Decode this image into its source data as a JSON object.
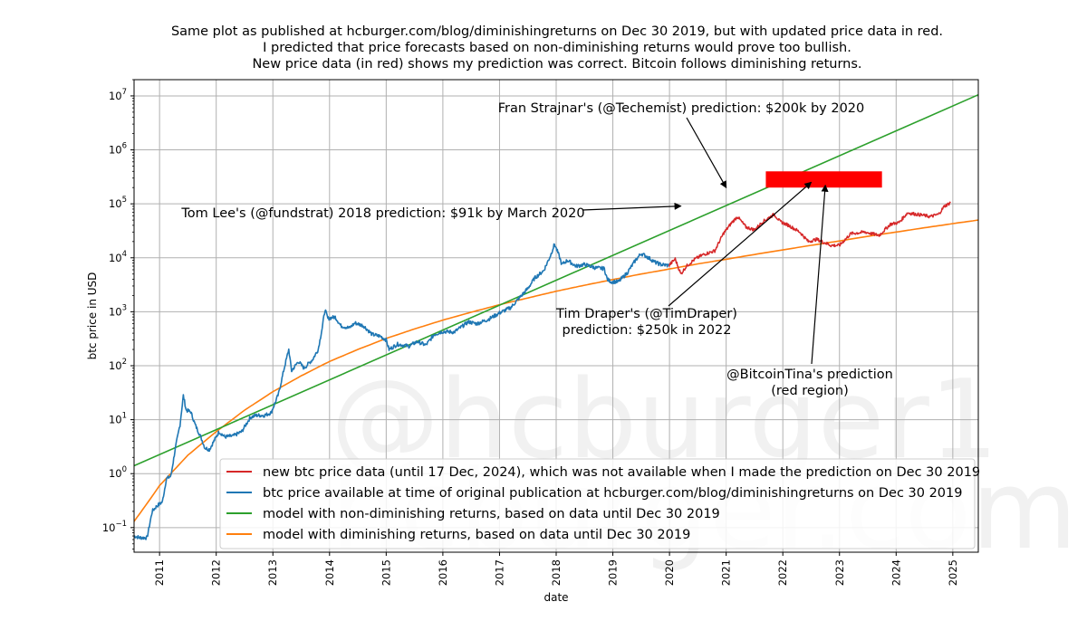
{
  "chart_data": {
    "type": "line",
    "title_lines": [
      "Same plot as published at hcburger.com/blog/diminishingreturns on Dec 30 2019, but with updated price data in red.",
      "I predicted that price forecasts based on non-diminishing returns would prove too bullish.",
      "New price data (in red) shows my prediction was correct. Bitcoin follows diminishing returns."
    ],
    "xlabel": "date",
    "ylabel": "btc price in USD",
    "x_scale": "linear (years)",
    "y_scale": "log",
    "xlim": [
      2010.55,
      2025.45
    ],
    "ylim": [
      0.035,
      20000000
    ],
    "x_ticks": [
      2011,
      2012,
      2013,
      2014,
      2015,
      2016,
      2017,
      2018,
      2019,
      2020,
      2021,
      2022,
      2023,
      2024,
      2025
    ],
    "y_ticks": [
      {
        "base": "10",
        "exp": "−1",
        "value": 0.1
      },
      {
        "base": "10",
        "exp": "0",
        "value": 1
      },
      {
        "base": "10",
        "exp": "1",
        "value": 10
      },
      {
        "base": "10",
        "exp": "2",
        "value": 100
      },
      {
        "base": "10",
        "exp": "3",
        "value": 1000
      },
      {
        "base": "10",
        "exp": "4",
        "value": 10000
      },
      {
        "base": "10",
        "exp": "5",
        "value": 100000
      },
      {
        "base": "10",
        "exp": "6",
        "value": 1000000
      },
      {
        "base": "10",
        "exp": "7",
        "value": 10000000
      }
    ],
    "grid": true,
    "watermark_lines": [
      "@hcburger1",
      "hcburger.com"
    ],
    "series": [
      {
        "name": "btc price available at time of original publication at hcburger.com/blog/diminishingreturns on Dec 30 2019",
        "color": "#1f77b4",
        "points": [
          [
            2010.55,
            0.07
          ],
          [
            2010.65,
            0.065
          ],
          [
            2010.78,
            0.065
          ],
          [
            2010.87,
            0.2
          ],
          [
            2010.95,
            0.25
          ],
          [
            2011.05,
            0.3
          ],
          [
            2011.12,
            0.8
          ],
          [
            2011.2,
            0.9
          ],
          [
            2011.28,
            3.0
          ],
          [
            2011.36,
            8
          ],
          [
            2011.42,
            28
          ],
          [
            2011.47,
            15
          ],
          [
            2011.55,
            14
          ],
          [
            2011.63,
            8
          ],
          [
            2011.72,
            5
          ],
          [
            2011.8,
            3
          ],
          [
            2011.88,
            2.8
          ],
          [
            2011.96,
            4
          ],
          [
            2012.05,
            6
          ],
          [
            2012.15,
            4.8
          ],
          [
            2012.3,
            5
          ],
          [
            2012.45,
            6
          ],
          [
            2012.6,
            11
          ],
          [
            2012.7,
            12
          ],
          [
            2012.85,
            12
          ],
          [
            2012.97,
            13.5
          ],
          [
            2013.1,
            30
          ],
          [
            2013.2,
            90
          ],
          [
            2013.28,
            200
          ],
          [
            2013.33,
            80
          ],
          [
            2013.45,
            120
          ],
          [
            2013.55,
            90
          ],
          [
            2013.7,
            130
          ],
          [
            2013.8,
            200
          ],
          [
            2013.87,
            500
          ],
          [
            2013.92,
            1100
          ],
          [
            2013.97,
            750
          ],
          [
            2014.1,
            800
          ],
          [
            2014.2,
            550
          ],
          [
            2014.35,
            500
          ],
          [
            2014.45,
            620
          ],
          [
            2014.6,
            550
          ],
          [
            2014.75,
            380
          ],
          [
            2014.9,
            350
          ],
          [
            2015.0,
            300
          ],
          [
            2015.05,
            200
          ],
          [
            2015.2,
            250
          ],
          [
            2015.4,
            230
          ],
          [
            2015.55,
            280
          ],
          [
            2015.7,
            240
          ],
          [
            2015.85,
            380
          ],
          [
            2016.0,
            430
          ],
          [
            2016.2,
            420
          ],
          [
            2016.45,
            650
          ],
          [
            2016.6,
            600
          ],
          [
            2016.8,
            720
          ],
          [
            2017.0,
            950
          ],
          [
            2017.2,
            1200
          ],
          [
            2017.35,
            1800
          ],
          [
            2017.5,
            2700
          ],
          [
            2017.62,
            4200
          ],
          [
            2017.78,
            5800
          ],
          [
            2017.9,
            11000
          ],
          [
            2017.97,
            18000
          ],
          [
            2018.05,
            11000
          ],
          [
            2018.1,
            7500
          ],
          [
            2018.2,
            9000
          ],
          [
            2018.35,
            7000
          ],
          [
            2018.5,
            7500
          ],
          [
            2018.7,
            6500
          ],
          [
            2018.85,
            6300
          ],
          [
            2018.9,
            4000
          ],
          [
            2018.97,
            3600
          ],
          [
            2019.1,
            3600
          ],
          [
            2019.25,
            5200
          ],
          [
            2019.4,
            9000
          ],
          [
            2019.5,
            12000
          ],
          [
            2019.6,
            10500
          ],
          [
            2019.75,
            8200
          ],
          [
            2019.85,
            7500
          ],
          [
            2019.99,
            7200
          ]
        ]
      },
      {
        "name": "new btc price data (until 17 Dec, 2024), which was not available when I made the prediction on Dec 30 2019",
        "color": "#d62728",
        "points": [
          [
            2019.99,
            7200
          ],
          [
            2020.1,
            9500
          ],
          [
            2020.2,
            5000
          ],
          [
            2020.3,
            7000
          ],
          [
            2020.45,
            9500
          ],
          [
            2020.6,
            11500
          ],
          [
            2020.8,
            13500
          ],
          [
            2020.95,
            28000
          ],
          [
            2021.1,
            45000
          ],
          [
            2021.2,
            58000
          ],
          [
            2021.35,
            37000
          ],
          [
            2021.5,
            33000
          ],
          [
            2021.65,
            47000
          ],
          [
            2021.85,
            64000
          ],
          [
            2021.95,
            47000
          ],
          [
            2022.1,
            40000
          ],
          [
            2022.3,
            30000
          ],
          [
            2022.45,
            20000
          ],
          [
            2022.6,
            22000
          ],
          [
            2022.85,
            17000
          ],
          [
            2023.0,
            17000
          ],
          [
            2023.2,
            28000
          ],
          [
            2023.45,
            30000
          ],
          [
            2023.7,
            26000
          ],
          [
            2023.9,
            42000
          ],
          [
            2024.05,
            45000
          ],
          [
            2024.2,
            68000
          ],
          [
            2024.45,
            62000
          ],
          [
            2024.6,
            58000
          ],
          [
            2024.75,
            64000
          ],
          [
            2024.85,
            90000
          ],
          [
            2024.96,
            105000
          ]
        ]
      },
      {
        "name": "model with non-diminishing returns, based on data until Dec 30 2019",
        "color": "#2ca02c",
        "model": "power",
        "x_range": [
          2010.55,
          2025.45
        ],
        "y_at_start": 1.4,
        "y_at_end": 10500000
      },
      {
        "name": "model with diminishing returns, based on data until Dec 30 2019",
        "color": "#ff7f0e",
        "points": [
          [
            2010.55,
            0.13
          ],
          [
            2010.8,
            0.3
          ],
          [
            2011.0,
            0.6
          ],
          [
            2011.5,
            2.2
          ],
          [
            2012.0,
            6
          ],
          [
            2012.5,
            15
          ],
          [
            2013.0,
            33
          ],
          [
            2013.5,
            65
          ],
          [
            2014.0,
            120
          ],
          [
            2014.5,
            200
          ],
          [
            2015.0,
            320
          ],
          [
            2015.5,
            480
          ],
          [
            2016.0,
            700
          ],
          [
            2016.5,
            980
          ],
          [
            2017.0,
            1350
          ],
          [
            2017.5,
            1800
          ],
          [
            2018.0,
            2400
          ],
          [
            2018.5,
            3100
          ],
          [
            2019.0,
            3950
          ],
          [
            2019.5,
            5000
          ],
          [
            2020.0,
            6200
          ],
          [
            2020.5,
            7700
          ],
          [
            2021.0,
            9400
          ],
          [
            2021.5,
            11500
          ],
          [
            2022.0,
            14000
          ],
          [
            2022.5,
            17000
          ],
          [
            2023.0,
            20500
          ],
          [
            2023.5,
            25000
          ],
          [
            2024.0,
            30000
          ],
          [
            2024.5,
            36000
          ],
          [
            2025.0,
            43000
          ],
          [
            2025.45,
            50000
          ]
        ]
      }
    ],
    "shaded_region": {
      "label": "@BitcoinTina's prediction (red region)",
      "color": "#ff0000",
      "x_range": [
        2021.7,
        2023.75
      ],
      "y_range": [
        200000,
        400000
      ]
    },
    "annotations": [
      {
        "key": "fran",
        "lines": [
          "Fran Strajnar's (@Techemist) prediction: $200k by 2020"
        ],
        "arrow_to": [
          2021.0,
          200000
        ]
      },
      {
        "key": "tomlee",
        "lines": [
          "Tom Lee's (@fundstrat) 2018 prediction: $91k by March 2020"
        ],
        "arrow_to": [
          2020.2,
          91000
        ]
      },
      {
        "key": "draper",
        "lines": [
          "Tim Draper's (@TimDraper)",
          "prediction: $250k in 2022"
        ],
        "arrow_to": [
          2022.5,
          250000
        ]
      },
      {
        "key": "tina",
        "lines": [
          "@BitcoinTina's prediction",
          "(red region)"
        ],
        "arrow_to": [
          2022.75,
          220000
        ]
      }
    ],
    "legend_position": "lower-right"
  }
}
